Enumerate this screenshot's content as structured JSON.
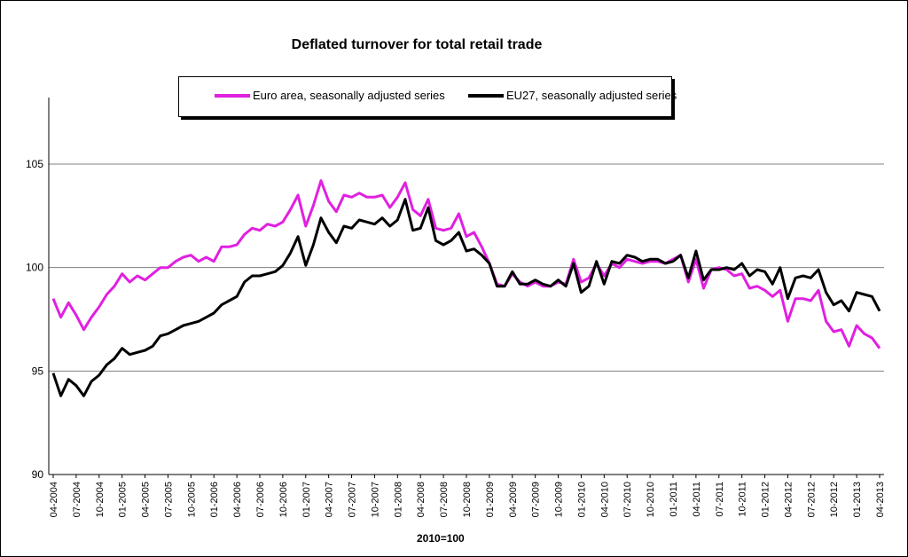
{
  "chart_data": {
    "type": "line",
    "title": "Deflated turnover for total retail trade",
    "xlabel": "2010=100",
    "ylabel": "",
    "ylim": [
      90,
      108
    ],
    "yticks": [
      90,
      95,
      100,
      105
    ],
    "grid": true,
    "legend": "top",
    "start_month": "04-2004",
    "tick_labels": [
      "04-2004",
      "07-2004",
      "10-2004",
      "01-2005",
      "04-2005",
      "07-2005",
      "10-2005",
      "01-2006",
      "04-2006",
      "07-2006",
      "10-2006",
      "01-2007",
      "04-2007",
      "07-2007",
      "10-2007",
      "01-2008",
      "04-2008",
      "07-2008",
      "10-2008",
      "01-2009",
      "04-2009",
      "07-2009",
      "10-2009",
      "01-2010",
      "04-2010",
      "07-2010",
      "10-2010",
      "01-2011",
      "04-2011",
      "07-2011",
      "10-2011",
      "01-2012",
      "04-2012",
      "07-2012",
      "10-2012",
      "01-2013",
      "04-2013"
    ],
    "series": [
      {
        "name": "Euro area, seasonally adjusted series",
        "color": "#e020e0",
        "values": [
          98.5,
          97.6,
          98.3,
          97.7,
          97.0,
          97.6,
          98.1,
          98.7,
          99.1,
          99.7,
          99.3,
          99.6,
          99.4,
          99.7,
          100.0,
          100.0,
          100.3,
          100.5,
          100.6,
          100.3,
          100.5,
          100.3,
          101.0,
          101.0,
          101.1,
          101.6,
          101.9,
          101.8,
          102.1,
          102.0,
          102.2,
          102.8,
          103.5,
          102.0,
          103.0,
          104.2,
          103.2,
          102.7,
          103.5,
          103.4,
          103.6,
          103.4,
          103.4,
          103.5,
          102.9,
          103.4,
          104.1,
          102.8,
          102.5,
          103.3,
          101.9,
          101.8,
          101.9,
          102.6,
          101.5,
          101.7,
          101.0,
          100.2,
          99.2,
          99.1,
          99.7,
          99.3,
          99.1,
          99.3,
          99.1,
          99.1,
          99.3,
          99.2,
          100.4,
          99.3,
          99.5,
          100.2,
          99.6,
          100.2,
          100.0,
          100.4,
          100.3,
          100.2,
          100.3,
          100.3,
          100.2,
          100.4,
          100.6,
          99.3,
          100.4,
          99.0,
          99.9,
          100.0,
          99.9,
          99.6,
          99.7,
          99.0,
          99.1,
          98.9,
          98.6,
          98.9,
          97.4,
          98.5,
          98.5,
          98.4,
          98.9,
          97.4,
          96.9,
          97.0,
          96.2,
          97.2,
          96.8,
          96.6,
          96.1
        ]
      },
      {
        "name": "EU27, seasonally adjusted series",
        "color": "#000000",
        "values": [
          94.9,
          93.8,
          94.6,
          94.3,
          93.8,
          94.5,
          94.8,
          95.3,
          95.6,
          96.1,
          95.8,
          95.9,
          96.0,
          96.2,
          96.7,
          96.8,
          97.0,
          97.2,
          97.3,
          97.4,
          97.6,
          97.8,
          98.2,
          98.4,
          98.6,
          99.3,
          99.6,
          99.6,
          99.7,
          99.8,
          100.1,
          100.7,
          101.5,
          100.1,
          101.1,
          102.4,
          101.7,
          101.2,
          102.0,
          101.9,
          102.3,
          102.2,
          102.1,
          102.4,
          102.0,
          102.3,
          103.3,
          101.8,
          101.9,
          102.9,
          101.3,
          101.1,
          101.3,
          101.7,
          100.8,
          100.9,
          100.6,
          100.2,
          99.1,
          99.1,
          99.8,
          99.2,
          99.2,
          99.4,
          99.2,
          99.1,
          99.4,
          99.1,
          100.2,
          98.8,
          99.1,
          100.3,
          99.2,
          100.3,
          100.2,
          100.6,
          100.5,
          100.3,
          100.4,
          100.4,
          100.2,
          100.3,
          100.6,
          99.5,
          100.8,
          99.4,
          99.9,
          99.9,
          100.0,
          99.9,
          100.2,
          99.6,
          99.9,
          99.8,
          99.2,
          100.0,
          98.5,
          99.5,
          99.6,
          99.5,
          99.9,
          98.8,
          98.2,
          98.4,
          97.9,
          98.8,
          98.7,
          98.6,
          97.9
        ]
      }
    ]
  }
}
